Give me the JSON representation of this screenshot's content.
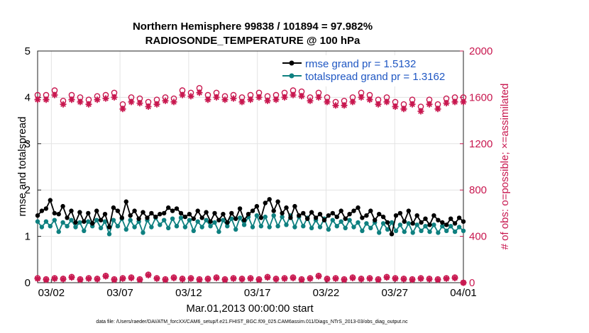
{
  "chart_data": {
    "type": "line",
    "title": "Northern Hemisphere 99838 / 101894 = 97.982%",
    "subtitle": "RADIOSONDE_TEMPERATURE @ 100 hPa",
    "xlabel": "Mar.01,2013 00:00:00 start",
    "ylabel": "rmse and totalspread",
    "y2label": "# of obs: o=possible; ×=assimilated",
    "xlim": [
      1,
      32
    ],
    "ylim": [
      0,
      5
    ],
    "y2lim": [
      0,
      2000
    ],
    "x_ticks": [
      2,
      7,
      12,
      17,
      22,
      27,
      32
    ],
    "x_tick_labels": [
      "03/02",
      "03/07",
      "03/12",
      "03/17",
      "03/22",
      "03/27",
      "04/01"
    ],
    "y_ticks": [
      "0",
      "1",
      "2",
      "3",
      "4",
      "5"
    ],
    "y2_ticks": [
      "0",
      "400",
      "800",
      "1200",
      "1600",
      "2000"
    ],
    "grid": true,
    "legend_position": "top-right",
    "footnote": "data file: /Users/raeder/DAI/ATM_forcXX/CAM6_setup/f.e21.FHIST_BGC.f09_025.CAM6assim.011/Diags_NTrS_2013-03/obs_diag_output.nc",
    "series": [
      {
        "name": "rmse grand pr = 1.5132",
        "axis": "left",
        "color": "#000000",
        "values": [
          1.45,
          1.55,
          1.6,
          1.78,
          1.5,
          1.48,
          1.65,
          1.4,
          1.55,
          1.3,
          1.52,
          1.32,
          1.5,
          1.28,
          1.55,
          1.35,
          1.48,
          1.2,
          1.62,
          1.55,
          1.4,
          1.75,
          1.45,
          1.55,
          1.38,
          1.52,
          1.4,
          1.5,
          1.42,
          1.48,
          1.5,
          1.62,
          1.55,
          1.6,
          1.5,
          1.42,
          1.48,
          1.38,
          1.55,
          1.4,
          1.52,
          1.32,
          1.5,
          1.35,
          1.48,
          1.3,
          1.5,
          1.38,
          1.6,
          1.35,
          1.48,
          1.55,
          1.65,
          1.4,
          1.72,
          1.8,
          1.55,
          1.75,
          1.5,
          1.62,
          1.4,
          1.65,
          1.45,
          1.5,
          1.38,
          1.52,
          1.4,
          1.48,
          1.35,
          1.45,
          1.5,
          1.42,
          1.55,
          1.38,
          1.48,
          1.55,
          1.62,
          1.4,
          1.45,
          1.55,
          1.35,
          1.48,
          1.42,
          1.3,
          1.05,
          1.45,
          1.5,
          1.32,
          1.55,
          1.28,
          1.45,
          1.3,
          1.38,
          1.25,
          1.45,
          1.35,
          1.3,
          1.25,
          1.38,
          1.28,
          1.4,
          1.32
        ]
      },
      {
        "name": "totalspread grand pr = 1.3162",
        "axis": "left",
        "color": "#0e8080",
        "values": [
          1.32,
          1.2,
          1.32,
          1.22,
          1.35,
          1.1,
          1.3,
          1.22,
          1.35,
          1.2,
          1.3,
          1.12,
          1.32,
          1.22,
          1.35,
          1.18,
          1.32,
          1.05,
          1.35,
          1.22,
          1.38,
          1.15,
          1.35,
          1.2,
          1.32,
          1.08,
          1.35,
          1.2,
          1.4,
          1.25,
          1.35,
          1.18,
          1.38,
          1.22,
          1.4,
          1.2,
          1.35,
          1.12,
          1.32,
          1.2,
          1.35,
          1.22,
          1.3,
          1.1,
          1.35,
          1.22,
          1.38,
          1.15,
          1.4,
          1.25,
          1.42,
          1.2,
          1.45,
          1.22,
          1.42,
          1.2,
          1.45,
          1.22,
          1.42,
          1.25,
          1.45,
          1.2,
          1.42,
          1.22,
          1.4,
          1.18,
          1.35,
          1.2,
          1.38,
          1.15,
          1.35,
          1.22,
          1.32,
          1.18,
          1.35,
          1.2,
          1.3,
          1.12,
          1.28,
          1.18,
          1.3,
          1.08,
          1.28,
          1.15,
          1.3,
          1.12,
          1.25,
          1.1,
          1.28,
          1.08,
          1.25,
          1.12,
          1.22,
          1.1,
          1.25,
          1.08,
          1.22,
          1.12,
          1.22,
          1.1,
          1.2,
          1.12
        ]
      },
      {
        "name": "obs possible",
        "axis": "right",
        "marker": "circle",
        "color": "#c8174f",
        "values": [
          1620,
          1620,
          1660,
          1570,
          1620,
          1600,
          1580,
          1610,
          1620,
          1640,
          1540,
          1600,
          1590,
          1560,
          1580,
          1600,
          1590,
          1660,
          1640,
          1680,
          1620,
          1640,
          1610,
          1620,
          1600,
          1620,
          1640,
          1610,
          1620,
          1640,
          1660,
          1650,
          1600,
          1640,
          1600,
          1560,
          1570,
          1600,
          1640,
          1620,
          1580,
          1600,
          1560,
          1540,
          1580,
          1520,
          1580,
          1540,
          1590,
          1600,
          1600
        ]
      },
      {
        "name": "obs assimilated",
        "axis": "right",
        "marker": "star",
        "color": "#c8174f",
        "values": [
          1580,
          1580,
          1620,
          1540,
          1580,
          1560,
          1540,
          1580,
          1590,
          1600,
          1500,
          1560,
          1550,
          1520,
          1540,
          1570,
          1560,
          1620,
          1610,
          1640,
          1580,
          1600,
          1580,
          1590,
          1560,
          1580,
          1600,
          1570,
          1580,
          1600,
          1620,
          1610,
          1570,
          1600,
          1560,
          1530,
          1530,
          1560,
          1600,
          1580,
          1540,
          1560,
          1520,
          1500,
          1540,
          1480,
          1540,
          1500,
          1550,
          1560,
          1560
        ]
      },
      {
        "name": "obs low possible",
        "axis": "right",
        "marker": "circle",
        "color": "#c8174f",
        "values": [
          40,
          30,
          40,
          35,
          50,
          30,
          40,
          35,
          60,
          30,
          40,
          45,
          30,
          70,
          40,
          30,
          45,
          35,
          40,
          30,
          35,
          45,
          30,
          40,
          35,
          40,
          30,
          50,
          35,
          40,
          45,
          30,
          40,
          60,
          35,
          40,
          30,
          45,
          35,
          40,
          30,
          50,
          40,
          35,
          30,
          40,
          35,
          30,
          40,
          45,
          0
        ]
      },
      {
        "name": "obs low assimilated",
        "axis": "right",
        "marker": "star",
        "color": "#c8174f",
        "values": [
          35,
          25,
          35,
          30,
          45,
          25,
          35,
          30,
          55,
          25,
          35,
          40,
          25,
          65,
          35,
          25,
          40,
          30,
          35,
          25,
          30,
          40,
          25,
          35,
          30,
          35,
          25,
          45,
          30,
          35,
          40,
          25,
          35,
          55,
          30,
          35,
          25,
          40,
          30,
          35,
          25,
          45,
          35,
          30,
          25,
          35,
          30,
          25,
          35,
          40,
          0
        ]
      }
    ]
  }
}
